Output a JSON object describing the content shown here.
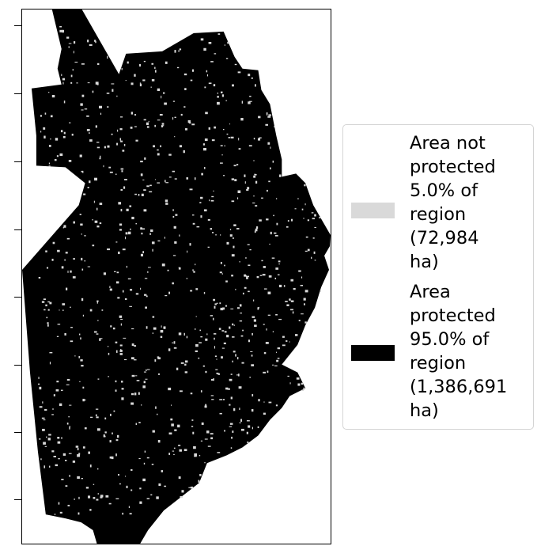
{
  "map": {
    "colors": {
      "protected": "#000000",
      "not_protected": "#d9d9d9",
      "background": "#ffffff"
    }
  },
  "legend": {
    "placement": "right",
    "items": [
      {
        "label": "Area not\nprotected\n5.0% of\nregion\n(72,984\nha)",
        "color": "#d9d9d9",
        "percent": 5.0,
        "hectares": 72984
      },
      {
        "label": "Area\nprotected\n95.0% of\nregion\n(1,386,691\nha)",
        "color": "#000000",
        "percent": 95.0,
        "hectares": 1386691
      }
    ]
  }
}
